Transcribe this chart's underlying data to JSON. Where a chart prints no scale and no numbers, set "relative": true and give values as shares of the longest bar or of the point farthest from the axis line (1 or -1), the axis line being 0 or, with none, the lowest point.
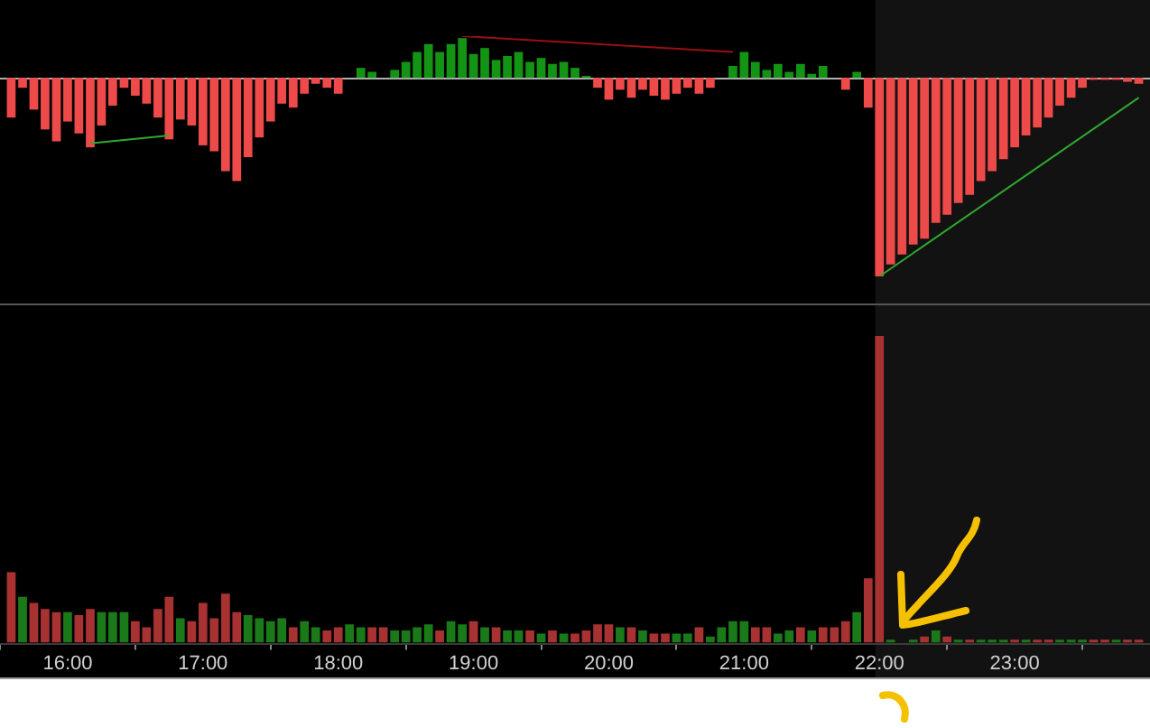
{
  "chart_data": [
    {
      "type": "bar",
      "relative": true,
      "legend": false,
      "grid": false,
      "tick_labels": false,
      "xlim": [
        15.5,
        24
      ],
      "x": [
        15.583,
        15.667,
        15.75,
        15.833,
        15.917,
        16,
        16.083,
        16.167,
        16.25,
        16.333,
        16.417,
        16.5,
        16.583,
        16.667,
        16.75,
        16.833,
        16.917,
        17,
        17.083,
        17.167,
        17.25,
        17.333,
        17.417,
        17.5,
        17.583,
        17.667,
        17.75,
        17.833,
        17.917,
        18,
        18.083,
        18.167,
        18.25,
        18.333,
        18.417,
        18.5,
        18.583,
        18.667,
        18.75,
        18.833,
        18.917,
        19,
        19.083,
        19.167,
        19.25,
        19.333,
        19.417,
        19.5,
        19.583,
        19.667,
        19.75,
        19.833,
        19.917,
        20,
        20.083,
        20.167,
        20.25,
        20.333,
        20.417,
        20.5,
        20.583,
        20.667,
        20.75,
        20.833,
        20.917,
        21,
        21.083,
        21.167,
        21.25,
        21.333,
        21.417,
        21.5,
        21.583,
        21.667,
        21.75,
        21.833,
        21.917,
        22,
        22.083,
        22.167,
        22.25,
        22.333,
        22.417,
        22.5,
        22.583,
        22.667,
        22.75,
        22.833,
        22.917,
        23,
        23.083,
        23.167,
        23.25,
        23.333,
        23.417,
        23.5,
        23.583,
        23.667,
        23.75,
        23.833,
        23.917
      ],
      "series": [
        {
          "values": [
            -0.2,
            -0.05,
            -0.16,
            -0.26,
            -0.32,
            -0.22,
            -0.28,
            -0.35,
            -0.24,
            -0.14,
            -0.05,
            -0.09,
            -0.13,
            -0.2,
            -0.31,
            -0.21,
            -0.24,
            -0.34,
            -0.37,
            -0.47,
            -0.52,
            -0.4,
            -0.3,
            -0.22,
            -0.13,
            -0.15,
            -0.08,
            -0.03,
            -0.05,
            -0.08,
            0,
            0.05,
            0.03,
            0,
            0.04,
            0.08,
            0.13,
            0.17,
            0.13,
            0.17,
            0.2,
            0.12,
            0.15,
            0.09,
            0.11,
            0.13,
            0.08,
            0.1,
            0.07,
            0.08,
            0.05,
            0.01,
            -0.05,
            -0.11,
            -0.06,
            -0.1,
            -0.06,
            -0.09,
            -0.11,
            -0.08,
            -0.05,
            -0.08,
            -0.05,
            0,
            0.06,
            0.13,
            0.08,
            0.04,
            0.07,
            0.03,
            0.07,
            0.02,
            0.06,
            0,
            -0.06,
            0.03,
            -0.15,
            -1,
            -0.94,
            -0.89,
            -0.84,
            -0.81,
            -0.73,
            -0.69,
            -0.63,
            -0.59,
            -0.52,
            -0.47,
            -0.41,
            -0.35,
            -0.29,
            -0.25,
            -0.2,
            -0.14,
            -0.1,
            -0.05,
            -0.01,
            -0.01,
            -0.01,
            -0.02,
            -0.03
          ],
          "colors": [
            "#ef4a4a",
            "#ef4a4a",
            "#ef4a4a",
            "#ef4a4a",
            "#ef4a4a",
            "#ef4a4a",
            "#ef4a4a",
            "#ef4a4a",
            "#ef4a4a",
            "#ef4a4a",
            "#ef4a4a",
            "#ef4a4a",
            "#ef4a4a",
            "#ef4a4a",
            "#ef4a4a",
            "#ef4a4a",
            "#ef4a4a",
            "#ef4a4a",
            "#ef4a4a",
            "#ef4a4a",
            "#ef4a4a",
            "#ef4a4a",
            "#ef4a4a",
            "#ef4a4a",
            "#ef4a4a",
            "#ef4a4a",
            "#ef4a4a",
            "#ef4a4a",
            "#ef4a4a",
            "#ef4a4a",
            "#ef4a4a",
            "#149414",
            "#149414",
            "#149414",
            "#149414",
            "#149414",
            "#149414",
            "#149414",
            "#149414",
            "#149414",
            "#149414",
            "#149414",
            "#149414",
            "#149414",
            "#149414",
            "#149414",
            "#149414",
            "#149414",
            "#149414",
            "#149414",
            "#149414",
            "#149414",
            "#ef4a4a",
            "#ef4a4a",
            "#ef4a4a",
            "#ef4a4a",
            "#ef4a4a",
            "#ef4a4a",
            "#ef4a4a",
            "#ef4a4a",
            "#ef4a4a",
            "#ef4a4a",
            "#ef4a4a",
            "#149414",
            "#149414",
            "#149414",
            "#149414",
            "#149414",
            "#149414",
            "#149414",
            "#149414",
            "#149414",
            "#149414",
            "#149414",
            "#ef4a4a",
            "#149414",
            "#ef4a4a",
            "#ef4a4a",
            "#ef4a4a",
            "#ef4a4a",
            "#ef4a4a",
            "#ef4a4a",
            "#ef4a4a",
            "#ef4a4a",
            "#ef4a4a",
            "#ef4a4a",
            "#ef4a4a",
            "#ef4a4a",
            "#ef4a4a",
            "#ef4a4a",
            "#ef4a4a",
            "#ef4a4a",
            "#ef4a4a",
            "#ef4a4a",
            "#ef4a4a",
            "#ef4a4a",
            "#ef4a4a",
            "#ef4a4a",
            "#ef4a4a",
            "#ef4a4a",
            "#ef4a4a"
          ]
        },
        {
          "type": "line",
          "color": "#2fa82f",
          "x": [
            16.167,
            16.75
          ],
          "values": [
            -0.33,
            -0.29
          ]
        },
        {
          "type": "line",
          "color": "#9a1010",
          "x": [
            18.917,
            20.917
          ],
          "values": [
            0.21,
            0.13
          ]
        },
        {
          "type": "line",
          "color": "#2fa82f",
          "x": [
            22,
            23.917
          ],
          "values": [
            -1,
            -0.1
          ]
        }
      ],
      "bands": [
        {
          "axis": "x",
          "from": 21.97,
          "to": 24,
          "color": "#121212"
        }
      ]
    },
    {
      "type": "bar",
      "relative": true,
      "legend": false,
      "grid": false,
      "tick_labels": "x",
      "xlim": [
        15.5,
        24
      ],
      "xticks": [
        {
          "value": 16,
          "label": "16:00"
        },
        {
          "value": 17,
          "label": "17:00"
        },
        {
          "value": 18,
          "label": "18:00"
        },
        {
          "value": 19,
          "label": "19:00"
        },
        {
          "value": 20,
          "label": "20:00"
        },
        {
          "value": 21,
          "label": "21:00"
        },
        {
          "value": 22,
          "label": "22:00"
        },
        {
          "value": 23,
          "label": "23:00"
        }
      ],
      "x": [
        15.583,
        15.667,
        15.75,
        15.833,
        15.917,
        16,
        16.083,
        16.167,
        16.25,
        16.333,
        16.417,
        16.5,
        16.583,
        16.667,
        16.75,
        16.833,
        16.917,
        17,
        17.083,
        17.167,
        17.25,
        17.333,
        17.417,
        17.5,
        17.583,
        17.667,
        17.75,
        17.833,
        17.917,
        18,
        18.083,
        18.167,
        18.25,
        18.333,
        18.417,
        18.5,
        18.583,
        18.667,
        18.75,
        18.833,
        18.917,
        19,
        19.083,
        19.167,
        19.25,
        19.333,
        19.417,
        19.5,
        19.583,
        19.667,
        19.75,
        19.833,
        19.917,
        20,
        20.083,
        20.167,
        20.25,
        20.333,
        20.417,
        20.5,
        20.583,
        20.667,
        20.75,
        20.833,
        20.917,
        21,
        21.083,
        21.167,
        21.25,
        21.333,
        21.417,
        21.5,
        21.583,
        21.667,
        21.75,
        21.833,
        21.917,
        22,
        22.083,
        22.167,
        22.25,
        22.333,
        22.417,
        22.5,
        22.583,
        22.667,
        22.75,
        22.833,
        22.917,
        23,
        23.083,
        23.167,
        23.25,
        23.333,
        23.417,
        23.5,
        23.583,
        23.667,
        23.75,
        23.833,
        23.917
      ],
      "values": [
        0.23,
        0.15,
        0.13,
        0.11,
        0.1,
        0.1,
        0.09,
        0.11,
        0.1,
        0.1,
        0.1,
        0.07,
        0.05,
        0.11,
        0.15,
        0.08,
        0.07,
        0.13,
        0.08,
        0.16,
        0.1,
        0.09,
        0.08,
        0.07,
        0.08,
        0.05,
        0.07,
        0.05,
        0.04,
        0.05,
        0.06,
        0.05,
        0.05,
        0.05,
        0.04,
        0.04,
        0.05,
        0.06,
        0.04,
        0.07,
        0.06,
        0.07,
        0.05,
        0.05,
        0.04,
        0.04,
        0.04,
        0.03,
        0.04,
        0.03,
        0.03,
        0.04,
        0.06,
        0.06,
        0.05,
        0.05,
        0.04,
        0.03,
        0.03,
        0.03,
        0.03,
        0.05,
        0.02,
        0.05,
        0.07,
        0.07,
        0.05,
        0.05,
        0.03,
        0.04,
        0.05,
        0.04,
        0.05,
        0.05,
        0.07,
        0.1,
        0.21,
        1,
        0.01,
        0,
        0.01,
        0.02,
        0.04,
        0.02,
        0.01,
        0.01,
        0.01,
        0.01,
        0.01,
        0.01,
        0.01,
        0.01,
        0.01,
        0.01,
        0.01,
        0.01,
        0.01,
        0.01,
        0.01,
        0.01,
        0.01
      ],
      "colors": [
        "#a83232",
        "#1a7a1a",
        "#a83232",
        "#a83232",
        "#a83232",
        "#1a7a1a",
        "#a83232",
        "#a83232",
        "#1a7a1a",
        "#1a7a1a",
        "#1a7a1a",
        "#a83232",
        "#a83232",
        "#a83232",
        "#a83232",
        "#1a7a1a",
        "#a83232",
        "#a83232",
        "#a83232",
        "#a83232",
        "#a83232",
        "#1a7a1a",
        "#1a7a1a",
        "#1a7a1a",
        "#1a7a1a",
        "#a83232",
        "#1a7a1a",
        "#1a7a1a",
        "#a83232",
        "#a83232",
        "#1a7a1a",
        "#1a7a1a",
        "#a83232",
        "#a83232",
        "#1a7a1a",
        "#1a7a1a",
        "#1a7a1a",
        "#1a7a1a",
        "#a83232",
        "#1a7a1a",
        "#1a7a1a",
        "#a83232",
        "#1a7a1a",
        "#a83232",
        "#1a7a1a",
        "#1a7a1a",
        "#a83232",
        "#1a7a1a",
        "#a83232",
        "#1a7a1a",
        "#a83232",
        "#a83232",
        "#a83232",
        "#a83232",
        "#1a7a1a",
        "#a83232",
        "#1a7a1a",
        "#a83232",
        "#a83232",
        "#1a7a1a",
        "#1a7a1a",
        "#a83232",
        "#1a7a1a",
        "#1a7a1a",
        "#1a7a1a",
        "#1a7a1a",
        "#a83232",
        "#a83232",
        "#1a7a1a",
        "#1a7a1a",
        "#a83232",
        "#1a7a1a",
        "#a83232",
        "#a83232",
        "#a83232",
        "#1a7a1a",
        "#a83232",
        "#a83232",
        "#1a7a1a",
        "#1a7a1a",
        "#1a7a1a",
        "#a83232",
        "#1a7a1a",
        "#a83232",
        "#1a7a1a",
        "#a83232",
        "#1a7a1a",
        "#1a7a1a",
        "#1a7a1a",
        "#a83232",
        "#1a7a1a",
        "#a83232",
        "#a83232",
        "#1a7a1a",
        "#1a7a1a",
        "#1a7a1a",
        "#a83232",
        "#a83232",
        "#1a7a1a",
        "#a83232",
        "#a83232"
      ],
      "bands": [
        {
          "axis": "x",
          "from": 21.97,
          "to": 24,
          "color": "#121212"
        }
      ]
    }
  ]
}
